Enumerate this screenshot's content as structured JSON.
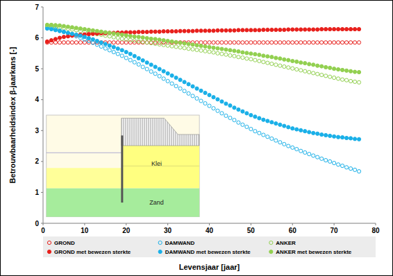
{
  "chart_data": {
    "type": "scatter",
    "x_label": "Levensjaar [jaar]",
    "y_label": "Betrouwbaarheidsindex β-jaarkans [-]",
    "annotations": [
      "Klei",
      "Zand"
    ],
    "x": [
      1,
      2,
      3,
      4,
      5,
      6,
      7,
      8,
      9,
      10,
      11,
      12,
      13,
      14,
      15,
      16,
      17,
      18,
      19,
      20,
      21,
      22,
      23,
      24,
      25,
      26,
      27,
      28,
      29,
      30,
      31,
      32,
      33,
      34,
      35,
      36,
      37,
      38,
      39,
      40,
      41,
      42,
      43,
      44,
      45,
      46,
      47,
      48,
      49,
      50,
      51,
      52,
      53,
      54,
      55,
      56,
      57,
      58,
      59,
      60,
      61,
      62,
      63,
      64,
      65,
      66,
      67,
      68,
      69,
      70,
      71,
      72,
      73,
      74,
      75,
      76
    ],
    "xlim": [
      0,
      80
    ],
    "xticks": [
      0,
      10,
      20,
      30,
      40,
      50,
      60,
      70,
      80
    ],
    "ylim": [
      0,
      7
    ],
    "yticks": [
      0,
      1,
      2,
      3,
      4,
      5,
      6,
      7
    ],
    "grid": false,
    "legend": "bottom",
    "series": [
      {
        "name": "GROND",
        "color": "#e8201c",
        "marker": "circle-open",
        "values": [
          5.85,
          5.85,
          5.85,
          5.85,
          5.85,
          5.85,
          5.85,
          5.85,
          5.85,
          5.85,
          5.85,
          5.85,
          5.85,
          5.85,
          5.85,
          5.85,
          5.85,
          5.85,
          5.85,
          5.85,
          5.85,
          5.85,
          5.85,
          5.85,
          5.85,
          5.85,
          5.85,
          5.85,
          5.85,
          5.85,
          5.85,
          5.85,
          5.85,
          5.85,
          5.85,
          5.85,
          5.85,
          5.85,
          5.85,
          5.85,
          5.85,
          5.85,
          5.85,
          5.85,
          5.85,
          5.85,
          5.85,
          5.85,
          5.85,
          5.85,
          5.85,
          5.85,
          5.85,
          5.85,
          5.85,
          5.85,
          5.85,
          5.85,
          5.85,
          5.85,
          5.85,
          5.85,
          5.85,
          5.85,
          5.85,
          5.85,
          5.85,
          5.85,
          5.85,
          5.85,
          5.85,
          5.85,
          5.85,
          5.85,
          5.85,
          5.85
        ]
      },
      {
        "name": "DAMWAND",
        "color": "#1ab0e8",
        "marker": "circle-open",
        "values": [
          6.35,
          6.32,
          6.28,
          6.24,
          6.2,
          6.15,
          6.1,
          6.05,
          6.0,
          5.95,
          5.9,
          5.84,
          5.78,
          5.72,
          5.66,
          5.6,
          5.54,
          5.48,
          5.42,
          5.35,
          5.28,
          5.21,
          5.14,
          5.06,
          4.99,
          4.91,
          4.84,
          4.76,
          4.68,
          4.6,
          4.52,
          4.44,
          4.36,
          4.28,
          4.2,
          4.12,
          4.04,
          3.96,
          3.88,
          3.8,
          3.72,
          3.64,
          3.56,
          3.48,
          3.41,
          3.34,
          3.26,
          3.19,
          3.12,
          3.05,
          2.98,
          2.92,
          2.86,
          2.8,
          2.74,
          2.68,
          2.62,
          2.56,
          2.5,
          2.45,
          2.4,
          2.34,
          2.29,
          2.24,
          2.19,
          2.14,
          2.09,
          2.04,
          2.0,
          1.95,
          1.9,
          1.86,
          1.81,
          1.77,
          1.73,
          1.68
        ]
      },
      {
        "name": "ANKER",
        "color": "#92d050",
        "marker": "circle-open",
        "values": [
          6.38,
          6.37,
          6.35,
          6.33,
          6.31,
          6.29,
          6.27,
          6.25,
          6.22,
          6.2,
          6.17,
          6.15,
          6.12,
          6.1,
          6.07,
          6.05,
          6.02,
          6.0,
          5.97,
          5.95,
          5.93,
          5.91,
          5.89,
          5.87,
          5.85,
          5.83,
          5.81,
          5.79,
          5.77,
          5.75,
          5.73,
          5.71,
          5.69,
          5.67,
          5.65,
          5.63,
          5.61,
          5.59,
          5.57,
          5.55,
          5.53,
          5.5,
          5.48,
          5.46,
          5.43,
          5.41,
          5.38,
          5.36,
          5.33,
          5.31,
          5.28,
          5.25,
          5.22,
          5.19,
          5.16,
          5.13,
          5.1,
          5.07,
          5.04,
          5.01,
          4.98,
          4.95,
          4.92,
          4.89,
          4.86,
          4.83,
          4.8,
          4.77,
          4.74,
          4.71,
          4.68,
          4.65,
          4.63,
          4.6,
          4.58,
          4.56
        ]
      },
      {
        "name": "GROND  met bewezen sterkte",
        "color": "#e8201c",
        "marker": "circle",
        "values": [
          5.88,
          5.92,
          5.96,
          6.0,
          6.03,
          6.05,
          6.07,
          6.09,
          6.1,
          6.11,
          6.12,
          6.13,
          6.14,
          6.15,
          6.15,
          6.16,
          6.16,
          6.17,
          6.17,
          6.18,
          6.18,
          6.18,
          6.19,
          6.19,
          6.19,
          6.2,
          6.2,
          6.2,
          6.21,
          6.21,
          6.21,
          6.21,
          6.22,
          6.22,
          6.22,
          6.22,
          6.23,
          6.23,
          6.23,
          6.23,
          6.23,
          6.24,
          6.24,
          6.24,
          6.24,
          6.24,
          6.25,
          6.25,
          6.25,
          6.25,
          6.25,
          6.25,
          6.26,
          6.26,
          6.26,
          6.26,
          6.26,
          6.26,
          6.27,
          6.27,
          6.27,
          6.27,
          6.27,
          6.27,
          6.27,
          6.27,
          6.28,
          6.28,
          6.28,
          6.28,
          6.28,
          6.28,
          6.28,
          6.28,
          6.28,
          6.28
        ]
      },
      {
        "name": "DAMWAND  met bewezen sterkte",
        "color": "#1ab0e8",
        "marker": "circle",
        "values": [
          6.3,
          6.28,
          6.25,
          6.22,
          6.19,
          6.16,
          6.13,
          6.1,
          6.07,
          6.03,
          5.99,
          5.95,
          5.9,
          5.85,
          5.8,
          5.75,
          5.7,
          5.65,
          5.6,
          5.54,
          5.48,
          5.41,
          5.34,
          5.27,
          5.2,
          5.13,
          5.06,
          4.99,
          4.92,
          4.85,
          4.78,
          4.71,
          4.64,
          4.57,
          4.5,
          4.43,
          4.36,
          4.29,
          4.22,
          4.15,
          4.08,
          4.01,
          3.94,
          3.87,
          3.81,
          3.74,
          3.68,
          3.62,
          3.56,
          3.5,
          3.45,
          3.4,
          3.35,
          3.31,
          3.27,
          3.23,
          3.19,
          3.15,
          3.11,
          3.07,
          3.04,
          3.01,
          2.98,
          2.95,
          2.92,
          2.9,
          2.87,
          2.85,
          2.83,
          2.81,
          2.79,
          2.78,
          2.76,
          2.75,
          2.73,
          2.72
        ]
      },
      {
        "name": "ANKER  met bewezen sterkte",
        "color": "#92d050",
        "marker": "circle",
        "values": [
          6.42,
          6.42,
          6.41,
          6.4,
          6.38,
          6.36,
          6.34,
          6.32,
          6.3,
          6.28,
          6.26,
          6.24,
          6.22,
          6.2,
          6.18,
          6.16,
          6.14,
          6.12,
          6.1,
          6.08,
          6.06,
          6.04,
          6.03,
          6.01,
          5.99,
          5.97,
          5.96,
          5.94,
          5.92,
          5.9,
          5.88,
          5.86,
          5.84,
          5.82,
          5.8,
          5.78,
          5.76,
          5.74,
          5.72,
          5.7,
          5.68,
          5.66,
          5.64,
          5.62,
          5.6,
          5.58,
          5.56,
          5.53,
          5.51,
          5.49,
          5.47,
          5.45,
          5.42,
          5.4,
          5.38,
          5.35,
          5.33,
          5.3,
          5.28,
          5.25,
          5.23,
          5.2,
          5.18,
          5.15,
          5.13,
          5.1,
          5.08,
          5.05,
          5.03,
          5.0,
          4.98,
          4.96,
          4.94,
          4.92,
          4.9,
          4.89
        ]
      }
    ]
  }
}
